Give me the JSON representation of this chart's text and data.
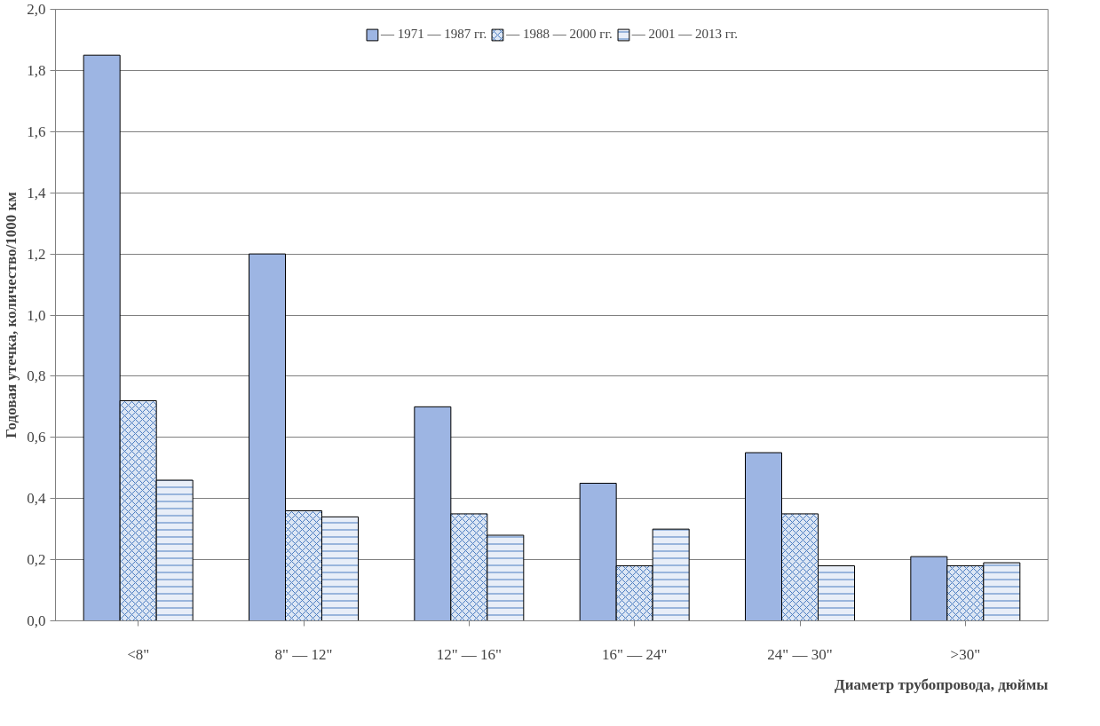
{
  "chart_data": {
    "type": "bar",
    "xlabel": "Диаметр трубопровода, дюймы",
    "ylabel": "Годовая утечка, количество/1000 км",
    "categories": [
      "<8\"",
      "8\" — 12\"",
      "12\" — 16\"",
      "16\" — 24\"",
      "24\" — 30\"",
      ">30\""
    ],
    "series": [
      {
        "name": "— 1971 — 1987 гг.",
        "color": "#9db5e3",
        "values": [
          1.85,
          1.2,
          0.7,
          0.45,
          0.55,
          0.21
        ]
      },
      {
        "name": "— 1988 — 2000 гг.",
        "color": "#dce6f4",
        "values": [
          0.72,
          0.36,
          0.35,
          0.18,
          0.35,
          0.18
        ]
      },
      {
        "name": "— 2001 — 2013 гг.",
        "color": "#e8eef8",
        "values": [
          0.46,
          0.34,
          0.28,
          0.3,
          0.18,
          0.19
        ]
      }
    ],
    "ylim": [
      0,
      2
    ],
    "yticks": [
      {
        "value": 0,
        "label": "0,0"
      },
      {
        "value": 0.2,
        "label": "0,2"
      },
      {
        "value": 0.4,
        "label": "0,4"
      },
      {
        "value": 0.6,
        "label": "0,6"
      },
      {
        "value": 0.8,
        "label": "0,8"
      },
      {
        "value": 1.0,
        "label": "1,0"
      },
      {
        "value": 1.2,
        "label": "1,2"
      },
      {
        "value": 1.4,
        "label": "1,4"
      },
      {
        "value": 1.6,
        "label": "1,6"
      },
      {
        "value": 1.8,
        "label": "1,8"
      },
      {
        "value": 2.0,
        "label": "2,0"
      }
    ],
    "grid": "y",
    "legend": "top"
  }
}
